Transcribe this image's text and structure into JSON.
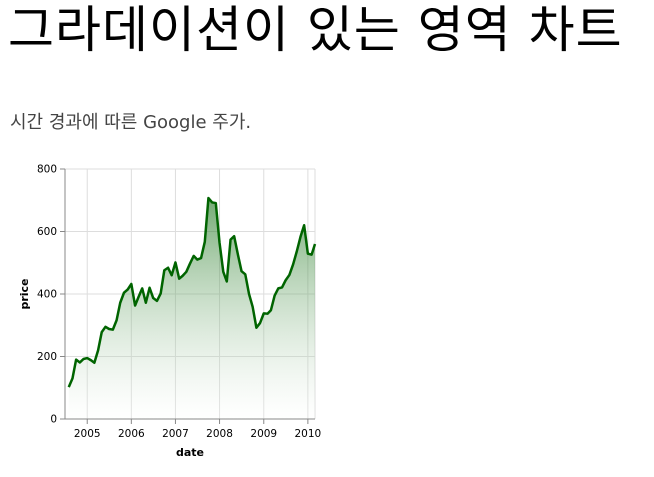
{
  "page": {
    "title": "그라데이션이 있는 영역 차트",
    "description": "시간 경과에 따른 Google 주가."
  },
  "colors": {
    "line": "#006400",
    "gradient_top": "#006400",
    "gradient_bottom": "#ffffff"
  },
  "chart_data": {
    "type": "area",
    "xlabel": "date",
    "ylabel": "price",
    "ylim": [
      0,
      800
    ],
    "xlim": [
      "2004-07-01",
      "2010-03-01"
    ],
    "x_ticks": [
      "2005",
      "2006",
      "2007",
      "2008",
      "2009",
      "2010"
    ],
    "y_ticks": [
      "0",
      "200",
      "400",
      "600",
      "800"
    ],
    "grid": true,
    "series": [
      {
        "x": [
          "2004-08-01",
          "2004-09-01",
          "2004-10-01",
          "2004-11-01",
          "2004-12-01",
          "2005-01-01",
          "2005-02-01",
          "2005-03-01",
          "2005-04-01",
          "2005-05-01",
          "2005-06-01",
          "2005-07-01",
          "2005-08-01",
          "2005-09-01",
          "2005-10-01",
          "2005-11-01",
          "2005-12-01",
          "2006-01-01",
          "2006-02-01",
          "2006-03-01",
          "2006-04-01",
          "2006-05-01",
          "2006-06-01",
          "2006-07-01",
          "2006-08-01",
          "2006-09-01",
          "2006-10-01",
          "2006-11-01",
          "2006-12-01",
          "2007-01-01",
          "2007-02-01",
          "2007-03-01",
          "2007-04-01",
          "2007-05-01",
          "2007-06-01",
          "2007-07-01",
          "2007-08-01",
          "2007-09-01",
          "2007-10-01",
          "2007-11-01",
          "2007-12-01",
          "2008-01-01",
          "2008-02-01",
          "2008-03-01",
          "2008-04-01",
          "2008-05-01",
          "2008-06-01",
          "2008-07-01",
          "2008-08-01",
          "2008-09-01",
          "2008-10-01",
          "2008-11-01",
          "2008-12-01",
          "2009-01-01",
          "2009-02-01",
          "2009-03-01",
          "2009-04-01",
          "2009-05-01",
          "2009-06-01",
          "2009-07-01",
          "2009-08-01",
          "2009-09-01",
          "2009-10-01",
          "2009-11-01",
          "2009-12-01",
          "2010-01-01",
          "2010-02-01",
          "2010-03-01"
        ],
        "y": [
          102,
          130,
          190,
          181,
          192,
          195,
          188,
          180,
          220,
          278,
          295,
          288,
          286,
          316,
          372,
          404,
          414,
          432,
          363,
          390,
          418,
          372,
          420,
          387,
          378,
          402,
          476,
          484,
          460,
          501,
          449,
          458,
          471,
          497,
          522,
          510,
          515,
          567,
          707,
          693,
          691,
          564,
          471,
          440,
          574,
          585,
          526,
          473,
          463,
          400,
          359,
          292,
          307,
          338,
          337,
          348,
          395,
          418,
          421,
          444,
          461,
          495,
          536,
          583,
          620,
          529,
          526,
          560
        ]
      }
    ]
  }
}
